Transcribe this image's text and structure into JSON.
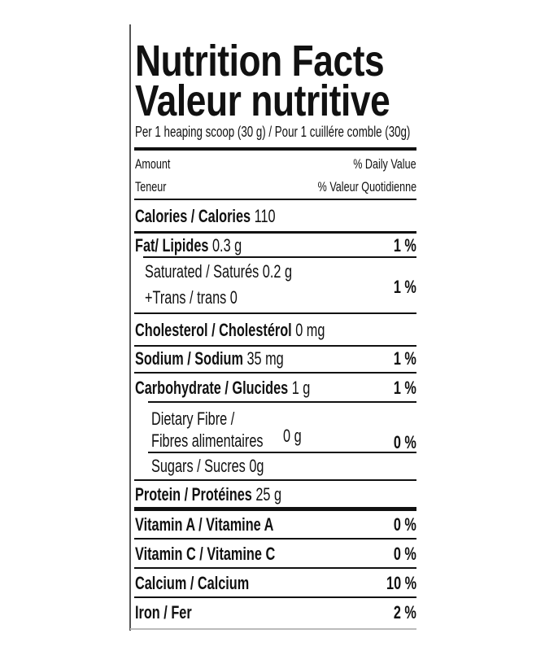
{
  "title_en": "Nutrition Facts",
  "title_fr": "Valeur nutritive",
  "serving": "Per 1 heaping scoop (30 g) / Pour 1 cuillére comble (30g)",
  "header": {
    "amount": "Amount",
    "teneur": "Teneur",
    "dv_en": "% Daily Value",
    "dv_fr": "% Valeur Quotidienne"
  },
  "calories": {
    "label": "Calories / Calories",
    "value": "110"
  },
  "fat": {
    "label": "Fat/ Lipides",
    "value": "0.3 g",
    "dv": "1 %"
  },
  "saturated": {
    "label": "Saturated / Saturés 0.2 g",
    "trans": "+Trans / trans 0",
    "dv": "1 %"
  },
  "cholesterol": {
    "label": "Cholesterol / Cholestérol",
    "value": "0 mg"
  },
  "sodium": {
    "label": "Sodium / Sodium",
    "value": "35 mg",
    "dv": "1 %"
  },
  "carbohydrate": {
    "label": "Carbohydrate / Glucides",
    "value": "1 g",
    "dv": "1 %"
  },
  "fibre": {
    "label_en": "Dietary Fibre /",
    "label_fr": "Fibres alimentaires",
    "value": "0 g",
    "dv": "0 %"
  },
  "sugars": {
    "label": "Sugars / Sucres 0g"
  },
  "protein": {
    "label": "Protein / Protéines",
    "value": "25 g"
  },
  "vitamin_a": {
    "label": "Vitamin A / Vitamine A",
    "dv": "0 %"
  },
  "vitamin_c": {
    "label": "Vitamin C / Vitamine C",
    "dv": "0 %"
  },
  "calcium": {
    "label": "Calcium / Calcium",
    "dv": "10 %"
  },
  "iron": {
    "label": "Iron / Fer",
    "dv": "2 %"
  }
}
